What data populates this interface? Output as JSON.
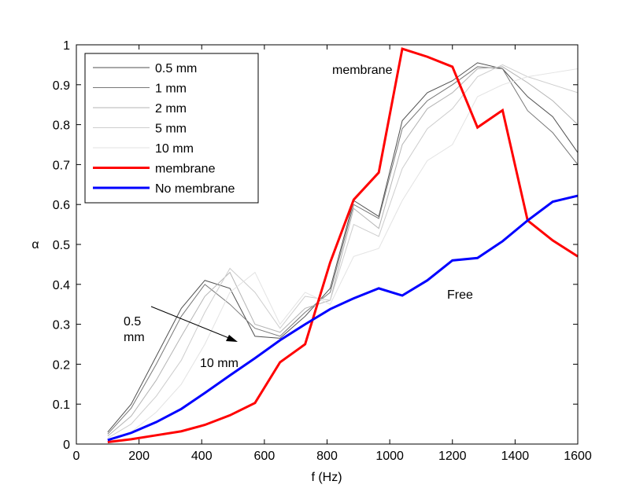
{
  "chart_data": {
    "type": "line",
    "xlabel": "f (Hz)",
    "ylabel": "α",
    "xlim": [
      0,
      1600
    ],
    "ylim": [
      0,
      1
    ],
    "xticks": [
      "0",
      "200",
      "400",
      "600",
      "800",
      "1000",
      "1200",
      "1400",
      "1600"
    ],
    "yticks": [
      "0",
      "0.1",
      "0.2",
      "0.3",
      "0.4",
      "0.5",
      "0.6",
      "0.7",
      "0.8",
      "0.9",
      "1"
    ],
    "grid": false,
    "legend_position": "top-left",
    "series": [
      {
        "name": "0.5 mm",
        "color": "#505050",
        "width": 1,
        "x": [
          100,
          175,
          255,
          335,
          410,
          490,
          570,
          650,
          730,
          810,
          885,
          965,
          1040,
          1120,
          1200,
          1280,
          1360,
          1440,
          1520,
          1600
        ],
        "y": [
          0.03,
          0.1,
          0.22,
          0.34,
          0.41,
          0.39,
          0.27,
          0.265,
          0.32,
          0.39,
          0.61,
          0.57,
          0.81,
          0.88,
          0.91,
          0.955,
          0.94,
          0.87,
          0.82,
          0.73
        ]
      },
      {
        "name": "1 mm",
        "color": "#787878",
        "width": 1,
        "x": [
          100,
          175,
          255,
          335,
          410,
          490,
          570,
          650,
          730,
          810,
          885,
          965,
          1040,
          1120,
          1200,
          1280,
          1360,
          1440,
          1520,
          1600
        ],
        "y": [
          0.025,
          0.09,
          0.2,
          0.32,
          0.4,
          0.35,
          0.29,
          0.27,
          0.33,
          0.38,
          0.6,
          0.565,
          0.79,
          0.86,
          0.9,
          0.945,
          0.94,
          0.835,
          0.78,
          0.7
        ]
      },
      {
        "name": "2 mm",
        "color": "#b4b4b4",
        "width": 1,
        "x": [
          100,
          175,
          255,
          335,
          410,
          490,
          570,
          650,
          730,
          810,
          885,
          965,
          1040,
          1120,
          1200,
          1280,
          1360,
          1440,
          1520,
          1600
        ],
        "y": [
          0.02,
          0.07,
          0.16,
          0.27,
          0.37,
          0.43,
          0.3,
          0.28,
          0.34,
          0.36,
          0.59,
          0.54,
          0.75,
          0.84,
          0.88,
          0.94,
          0.945,
          0.905,
          0.86,
          0.8
        ]
      },
      {
        "name": "5 mm",
        "color": "#cdcdcd",
        "width": 1,
        "x": [
          100,
          175,
          255,
          335,
          410,
          490,
          570,
          650,
          730,
          810,
          885,
          965,
          1040,
          1120,
          1200,
          1280,
          1360,
          1440,
          1520,
          1600
        ],
        "y": [
          0.015,
          0.05,
          0.12,
          0.21,
          0.33,
          0.44,
          0.38,
          0.29,
          0.37,
          0.36,
          0.55,
          0.52,
          0.69,
          0.79,
          0.84,
          0.92,
          0.95,
          0.92,
          0.9,
          0.88
        ]
      },
      {
        "name": "10 mm",
        "color": "#e3e3e3",
        "width": 1,
        "x": [
          100,
          175,
          255,
          335,
          410,
          490,
          570,
          650,
          730,
          810,
          885,
          965,
          1040,
          1120,
          1200,
          1280,
          1360,
          1440,
          1520,
          1600
        ],
        "y": [
          0.01,
          0.03,
          0.08,
          0.15,
          0.25,
          0.38,
          0.43,
          0.3,
          0.38,
          0.35,
          0.47,
          0.49,
          0.61,
          0.71,
          0.75,
          0.87,
          0.9,
          0.92,
          0.93,
          0.94
        ]
      },
      {
        "name": "membrane",
        "color": "#ff0000",
        "width": 3,
        "x": [
          100,
          175,
          255,
          335,
          410,
          490,
          570,
          650,
          730,
          810,
          885,
          965,
          1040,
          1120,
          1200,
          1280,
          1360,
          1440,
          1520,
          1600
        ],
        "y": [
          0.005,
          0.012,
          0.022,
          0.032,
          0.048,
          0.072,
          0.103,
          0.205,
          0.25,
          0.455,
          0.612,
          0.68,
          0.99,
          0.97,
          0.945,
          0.793,
          0.836,
          0.56,
          0.51,
          0.47
        ]
      },
      {
        "name": "No membrane",
        "color": "#0000ff",
        "width": 3,
        "x": [
          100,
          175,
          255,
          335,
          410,
          490,
          570,
          650,
          730,
          810,
          885,
          965,
          1040,
          1120,
          1200,
          1280,
          1360,
          1440,
          1520,
          1600
        ],
        "y": [
          0.01,
          0.028,
          0.055,
          0.088,
          0.128,
          0.172,
          0.215,
          0.26,
          0.3,
          0.338,
          0.365,
          0.39,
          0.372,
          0.41,
          0.46,
          0.466,
          0.508,
          0.56,
          0.607,
          0.622
        ]
      }
    ],
    "annotations": {
      "membrane_label": "membrane",
      "free_label": "Free",
      "arrow_start_label_line1": "0.5",
      "arrow_start_label_line2": "mm",
      "arrow_end_label": "10 mm"
    }
  }
}
